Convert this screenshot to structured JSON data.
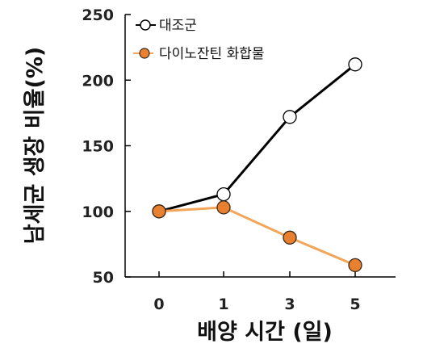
{
  "chart_data": {
    "type": "line",
    "x": [
      "0",
      "1",
      "3",
      "5"
    ],
    "xlabel": "배양 시간 (일)",
    "ylabel": "남세균 생장 비율(%)",
    "ylim": [
      50,
      250
    ],
    "yticks": [
      "50",
      "100",
      "150",
      "200",
      "250"
    ],
    "grid": false,
    "legend_position": "top-left",
    "series": [
      {
        "name": "대조군",
        "values": [
          100,
          113,
          172,
          212
        ],
        "line_color": "#000000",
        "marker_fill": "#ffffff",
        "marker_stroke": "#000000"
      },
      {
        "name": "다이노잔틴 화합물",
        "values": [
          100,
          103,
          80,
          59
        ],
        "line_color": "#f2a65a",
        "marker_fill": "#e9802f",
        "marker_stroke": "#3a2a1a"
      }
    ]
  }
}
